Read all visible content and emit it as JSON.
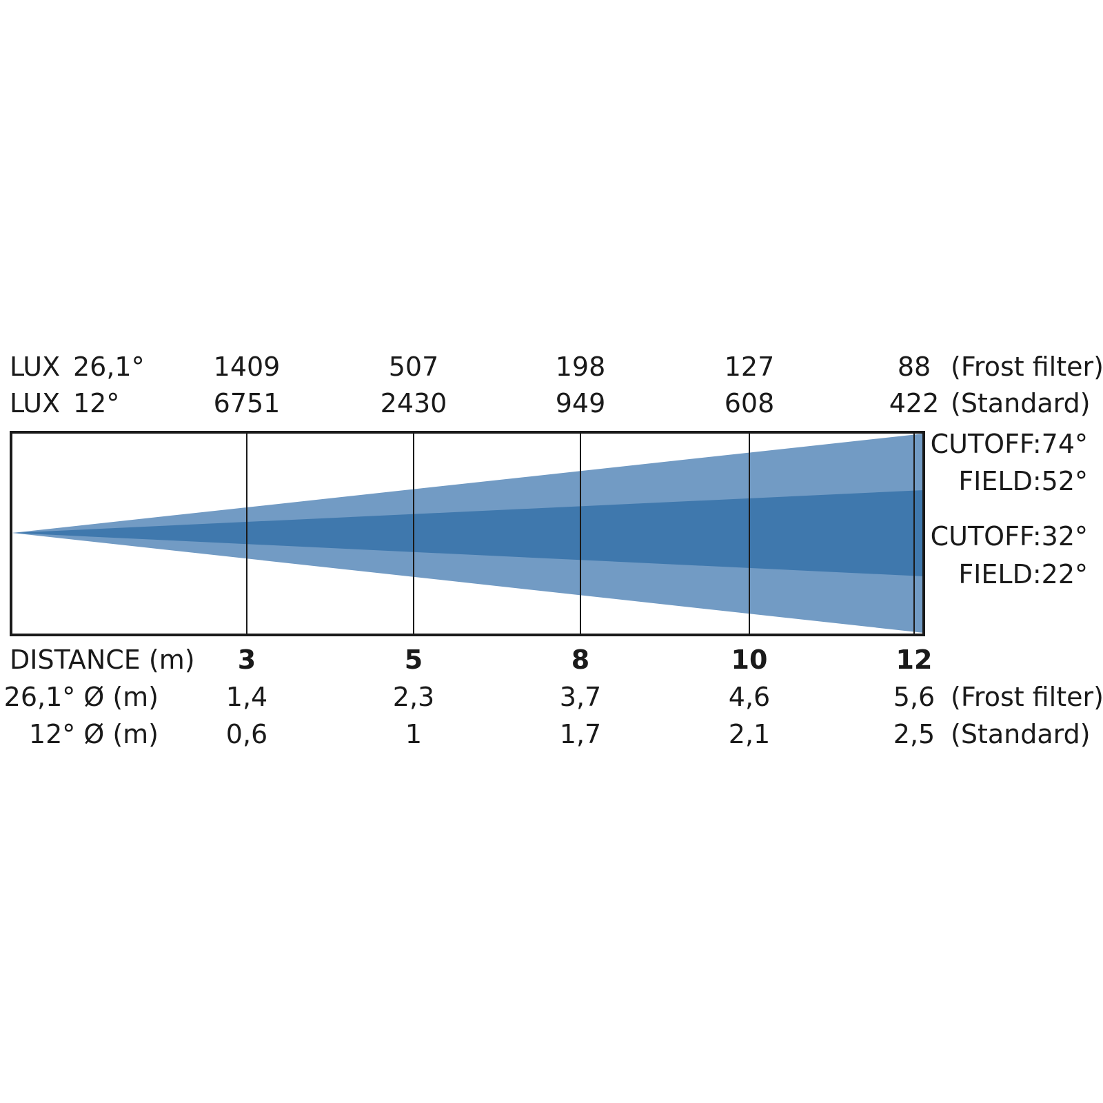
{
  "labels": {
    "lux_label": "LUX",
    "frost_angle": "26,1°",
    "standard_angle": "12°",
    "frost_note": "(Frost filter)",
    "standard_note": "(Standard)",
    "distance_label": "DISTANCE (m)",
    "frost_diameter_label": "26,1° Ø (m)",
    "standard_diameter_label": "12° Ø (m)"
  },
  "beams": [
    {
      "name": "outer",
      "cutoff_label": "CUTOFF:74°",
      "field_label": "FIELD:52°"
    },
    {
      "name": "inner",
      "cutoff_label": "CUTOFF:32°",
      "field_label": "FIELD:22°"
    }
  ],
  "columns": [
    {
      "distance": "3",
      "lux_frost": "1409",
      "lux_standard": "6751",
      "dia_frost": "1,4",
      "dia_standard": "0,6"
    },
    {
      "distance": "5",
      "lux_frost": "507",
      "lux_standard": "2430",
      "dia_frost": "2,3",
      "dia_standard": "1"
    },
    {
      "distance": "8",
      "lux_frost": "198",
      "lux_standard": "949",
      "dia_frost": "3,7",
      "dia_standard": "1,7"
    },
    {
      "distance": "10",
      "lux_frost": "127",
      "lux_standard": "608",
      "dia_frost": "4,6",
      "dia_standard": "2,1"
    },
    {
      "distance": "12",
      "lux_frost": "88",
      "lux_standard": "422",
      "dia_frost": "5,6",
      "dia_standard": "2,5"
    }
  ],
  "colors": {
    "outer_beam": "#729bc4",
    "inner_beam": "#3f78ad",
    "frame": "#1a1a1a"
  }
}
